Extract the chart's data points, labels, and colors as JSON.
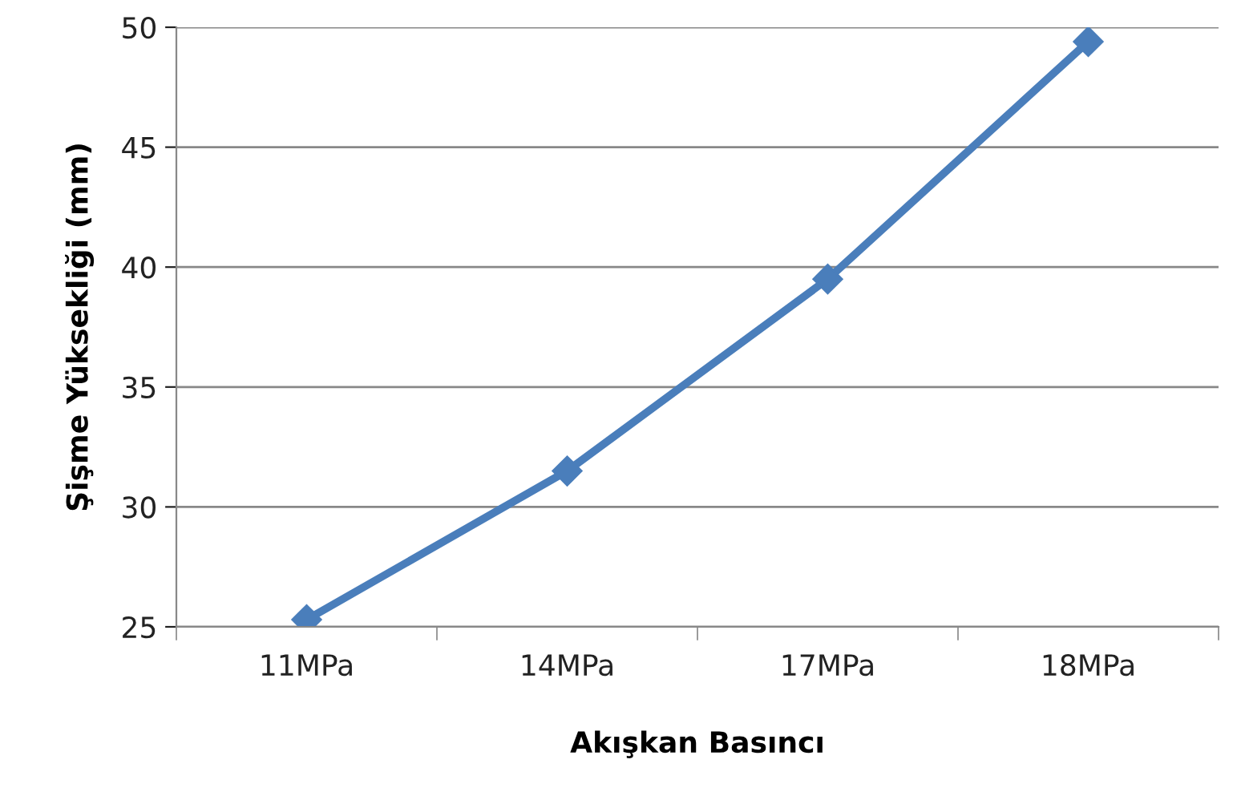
{
  "chart_data": {
    "type": "line",
    "xlabel": "Akışkan Basıncı",
    "ylabel": "Şişme Yüksekliği (mm)",
    "categories": [
      "11MPa",
      "14MPa",
      "17MPa",
      "18MPa"
    ],
    "series": [
      {
        "color": "#4a7ebb",
        "values": [
          25.3,
          31.5,
          39.5,
          49.4
        ]
      }
    ],
    "ylim": [
      25,
      50
    ],
    "yticks": [
      25,
      30,
      35,
      40,
      45,
      50
    ],
    "grid": "y",
    "marker": "diamond",
    "line_style": "solid",
    "legend": false
  }
}
